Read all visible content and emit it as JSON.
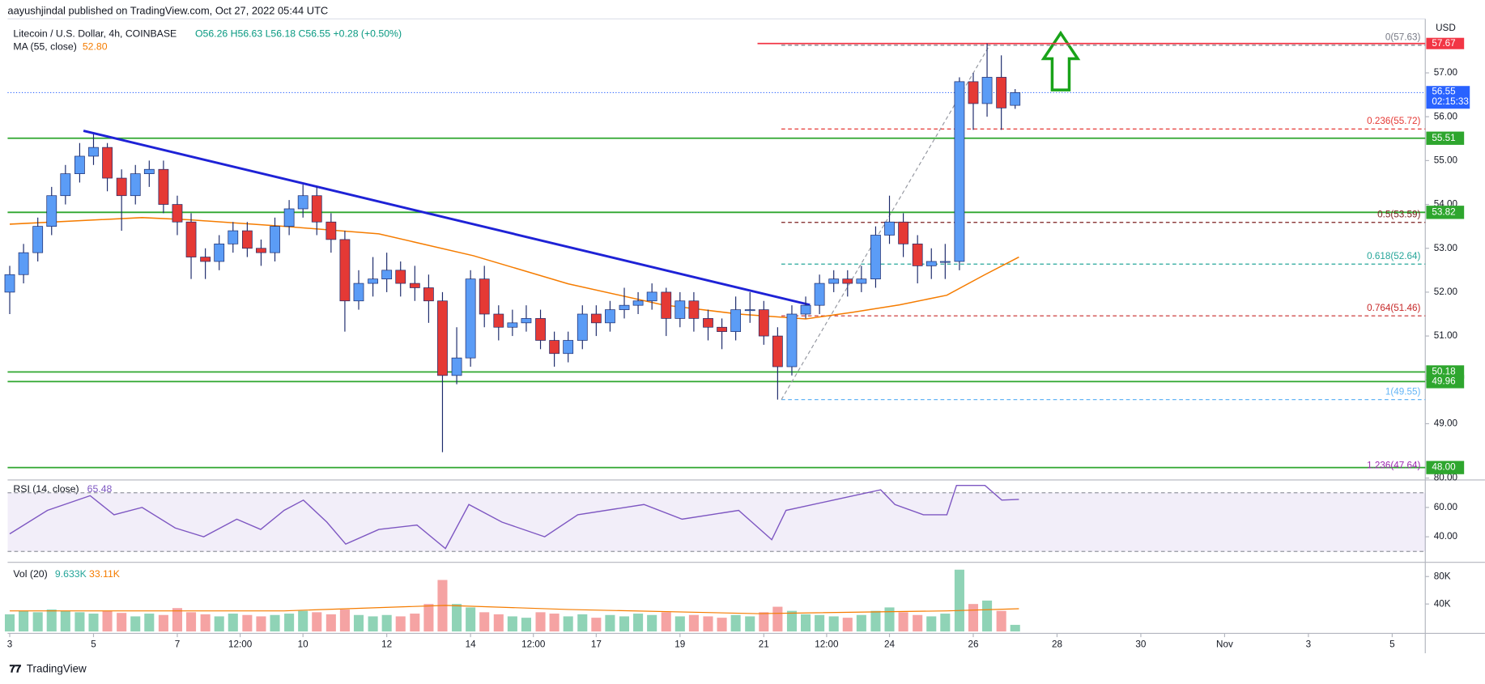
{
  "header": {
    "publisher": "aayushjindal published on TradingView.com, Oct 27, 2022 05:44 UTC",
    "brand": "TradingView"
  },
  "chart_data": {
    "type": "candlestick",
    "symbol": "Litecoin / U.S. Dollar, 4h, COINBASE",
    "ohlc_text": "O56.26 H56.63 L56.18 C56.55 +0.28 (+0.50%)",
    "currency": "USD",
    "countdown": "02:15:33",
    "up_color": "#5b9cf6",
    "down_color": "#e53935",
    "xlim": [
      -0.05,
      33.79
    ],
    "xticks": [
      {
        "value": 0,
        "label": "3"
      },
      {
        "value": 2,
        "label": "5"
      },
      {
        "value": 4,
        "label": "7"
      },
      {
        "value": 5.5,
        "label": "12:00"
      },
      {
        "value": 7,
        "label": "10"
      },
      {
        "value": 9,
        "label": "12"
      },
      {
        "value": 11,
        "label": "14"
      },
      {
        "value": 12.5,
        "label": "12:00"
      },
      {
        "value": 14,
        "label": "17"
      },
      {
        "value": 16,
        "label": "19"
      },
      {
        "value": 18,
        "label": "21"
      },
      {
        "value": 19.5,
        "label": "12:00"
      },
      {
        "value": 21,
        "label": "24"
      },
      {
        "value": 23,
        "label": "26"
      },
      {
        "value": 25,
        "label": "28"
      },
      {
        "value": 27,
        "label": "30"
      },
      {
        "value": 29,
        "label": "Nov"
      },
      {
        "value": 31,
        "label": "3"
      },
      {
        "value": 33,
        "label": "5"
      }
    ],
    "ylim": [
      47.76,
      58.23
    ],
    "yticks": [
      {
        "value": 49,
        "label": "49.00"
      },
      {
        "value": 50,
        "label": "50.00"
      },
      {
        "value": 51,
        "label": "51.00"
      },
      {
        "value": 52,
        "label": "52.00"
      },
      {
        "value": 53,
        "label": "53.00"
      },
      {
        "value": 54,
        "label": "54.00"
      },
      {
        "value": 55,
        "label": "55.00"
      },
      {
        "value": 56,
        "label": "56.00"
      },
      {
        "value": 57,
        "label": "57.00"
      }
    ],
    "x": [
      0,
      0.33,
      0.67,
      1,
      1.33,
      1.67,
      2,
      2.33,
      2.67,
      3,
      3.33,
      3.67,
      4,
      4.33,
      4.67,
      5,
      5.33,
      5.67,
      6,
      6.33,
      6.67,
      7,
      7.33,
      7.67,
      8,
      8.33,
      8.67,
      9,
      9.33,
      9.67,
      10,
      10.33,
      10.67,
      11,
      11.33,
      11.67,
      12,
      12.33,
      12.67,
      13,
      13.33,
      13.67,
      14,
      14.33,
      14.67,
      15,
      15.33,
      15.67,
      16,
      16.33,
      16.67,
      17,
      17.33,
      17.67,
      18,
      18.33,
      18.67,
      19,
      19.33,
      19.67,
      20,
      20.33,
      20.67,
      21,
      21.33,
      21.67,
      22,
      22.33,
      22.67,
      23,
      23.33,
      23.67,
      24
    ],
    "open": [
      52.0,
      52.4,
      52.9,
      53.5,
      54.2,
      54.7,
      55.1,
      55.3,
      54.6,
      54.2,
      54.7,
      54.8,
      54.0,
      53.6,
      52.8,
      52.7,
      53.1,
      53.4,
      53.0,
      52.9,
      53.5,
      53.9,
      54.2,
      53.6,
      53.2,
      51.8,
      52.2,
      52.3,
      52.5,
      52.2,
      52.1,
      51.8,
      50.1,
      50.5,
      52.3,
      51.5,
      51.2,
      51.3,
      51.4,
      50.9,
      50.6,
      50.9,
      51.5,
      51.3,
      51.6,
      51.7,
      51.8,
      52.0,
      51.4,
      51.8,
      51.4,
      51.2,
      51.1,
      51.6,
      51.6,
      51.0,
      50.3,
      51.5,
      51.7,
      52.2,
      52.3,
      52.2,
      52.3,
      53.3,
      53.6,
      53.1,
      52.6,
      52.7,
      52.7,
      56.8,
      56.3,
      56.9,
      56.26
    ],
    "high": [
      52.6,
      53.1,
      53.7,
      54.4,
      54.9,
      55.4,
      55.6,
      55.4,
      54.8,
      54.9,
      55.0,
      55.0,
      54.2,
      53.8,
      53.0,
      53.3,
      53.6,
      53.6,
      53.2,
      53.7,
      54.1,
      54.45,
      54.4,
      53.8,
      53.4,
      52.5,
      52.8,
      52.9,
      52.7,
      52.6,
      52.4,
      52.0,
      51.2,
      52.5,
      52.6,
      51.7,
      51.6,
      51.7,
      51.6,
      51.1,
      51.1,
      51.7,
      51.7,
      51.8,
      52.1,
      52.0,
      52.2,
      52.1,
      52.0,
      52.0,
      51.6,
      51.4,
      51.9,
      52.0,
      51.8,
      51.2,
      51.7,
      51.9,
      52.4,
      52.5,
      52.5,
      52.6,
      53.5,
      54.2,
      53.8,
      53.3,
      53.0,
      53.1,
      56.9,
      57.0,
      57.67,
      57.4,
      56.63
    ],
    "low": [
      51.5,
      52.2,
      52.7,
      53.3,
      54.0,
      54.5,
      54.9,
      54.3,
      53.4,
      54.0,
      54.4,
      53.8,
      53.3,
      52.3,
      52.3,
      52.5,
      52.9,
      52.8,
      52.6,
      52.7,
      53.3,
      53.7,
      53.3,
      52.9,
      51.1,
      51.6,
      51.9,
      52.0,
      51.9,
      51.8,
      51.3,
      48.35,
      49.9,
      50.3,
      51.2,
      50.9,
      51.0,
      51.1,
      50.7,
      50.3,
      50.4,
      50.7,
      51.0,
      51.1,
      51.4,
      51.5,
      51.6,
      51.0,
      51.2,
      51.1,
      50.9,
      50.7,
      50.9,
      51.3,
      50.8,
      49.55,
      50.1,
      51.4,
      51.5,
      52.0,
      51.9,
      52.0,
      52.1,
      53.1,
      52.8,
      52.2,
      52.3,
      52.3,
      52.5,
      55.7,
      56.0,
      55.7,
      56.18
    ],
    "close": [
      52.4,
      52.9,
      53.5,
      54.2,
      54.7,
      55.1,
      55.3,
      54.6,
      54.2,
      54.7,
      54.8,
      54.0,
      53.6,
      52.8,
      52.7,
      53.1,
      53.4,
      53.0,
      52.9,
      53.5,
      53.9,
      54.2,
      53.6,
      53.2,
      51.8,
      52.2,
      52.3,
      52.5,
      52.2,
      52.1,
      51.8,
      50.1,
      50.5,
      52.3,
      51.5,
      51.2,
      51.3,
      51.4,
      50.9,
      50.6,
      50.9,
      51.5,
      51.3,
      51.6,
      51.7,
      51.8,
      52.0,
      51.4,
      51.8,
      51.4,
      51.2,
      51.1,
      51.6,
      51.6,
      51.0,
      50.3,
      51.5,
      51.7,
      52.2,
      52.3,
      52.2,
      52.3,
      53.3,
      53.6,
      53.1,
      52.6,
      52.7,
      52.7,
      56.8,
      56.3,
      56.9,
      56.2,
      56.55
    ],
    "ma": {
      "name": "MA (55, close)",
      "legend_value": "52.80",
      "color": "#f57c00",
      "x": [
        0,
        3.16,
        4.29,
        6.55,
        8.81,
        11.07,
        13.33,
        15.59,
        17.4,
        19.0,
        20.11,
        21.24,
        22.37,
        23.28,
        24.09
      ],
      "values": [
        53.55,
        53.7,
        53.65,
        53.5,
        53.33,
        52.83,
        52.19,
        51.71,
        51.5,
        51.39,
        51.54,
        51.71,
        51.93,
        52.4,
        52.8
      ]
    },
    "trendline": {
      "color": "#1e22d6",
      "x": [
        1.76,
        19.1
      ],
      "values": [
        55.68,
        51.71
      ]
    },
    "hlines": [
      {
        "value": 55.51,
        "label": "55.51"
      },
      {
        "value": 53.82,
        "label": "53.82"
      },
      {
        "value": 50.18,
        "label": "50.18"
      },
      {
        "value": 49.96,
        "label": "49.96"
      },
      {
        "value": 48.0,
        "label": "48.00"
      }
    ],
    "hline_color": "#2ea62e",
    "resistance": {
      "value": 57.67,
      "label": "57.67",
      "color": "#f23645",
      "x_start": 17.85
    },
    "price_line_color": "#2962ff",
    "fib": {
      "x": [
        18.42,
        23.39
      ],
      "levels": [
        {
          "value": 57.63,
          "label": "0(57.63)",
          "color": "#787b86"
        },
        {
          "value": 55.72,
          "label": "0.236(55.72)",
          "color": "#e53935"
        },
        {
          "value": 53.59,
          "label": "0.5(53.59)",
          "color": "#7b1f1f"
        },
        {
          "value": 52.64,
          "label": "0.618(52.64)",
          "color": "#26a69a"
        },
        {
          "value": 51.46,
          "label": "0.764(51.46)",
          "color": "#c62828"
        },
        {
          "value": 49.55,
          "label": "1(49.55)",
          "color": "#64b5f6"
        },
        {
          "value": 47.64,
          "label": "1.236(47.64)",
          "color": "#9c27b0"
        }
      ]
    },
    "rsi": {
      "name": "RSI (14, close)",
      "color": "#7e57c2",
      "ylim": [
        23.87,
        80
      ],
      "band": [
        30,
        70
      ],
      "yticks": [
        {
          "value": 40,
          "label": "40.00"
        },
        {
          "value": 60,
          "label": "60.00"
        },
        {
          "value": 80,
          "label": "80.00"
        }
      ],
      "x": [
        0,
        0.9,
        1.92,
        2.49,
        3.16,
        3.95,
        4.63,
        5.42,
        5.99,
        6.55,
        7.01,
        7.57,
        8.02,
        8.81,
        9.72,
        10.4,
        10.96,
        11.75,
        12.77,
        13.56,
        15.14,
        16.05,
        17.4,
        18.19,
        18.53,
        19.66,
        20.79,
        21.13,
        21.81,
        22.37,
        22.6,
        23.28,
        23.68,
        24.09
      ],
      "values": [
        42,
        58,
        68,
        55,
        60,
        46,
        40,
        52,
        45,
        58,
        65,
        50,
        35,
        45,
        48,
        32,
        62,
        50,
        40,
        55,
        62,
        52,
        58,
        38,
        58,
        65,
        72,
        62,
        55,
        55,
        75,
        75,
        65,
        65.48
      ]
    },
    "volume": {
      "name": "Vol (20)",
      "legend_value": "9.633K",
      "ylim": [
        0,
        96550
      ],
      "yticks": [
        {
          "value": 40000,
          "label": "40K"
        },
        {
          "value": 80000,
          "label": "80K"
        }
      ],
      "up_color": "#8fd3b6",
      "down_color": "#f5a3a3",
      "values": [
        25000,
        30000,
        28000,
        32000,
        30000,
        28000,
        26000,
        30000,
        27000,
        22000,
        26000,
        24000,
        34000,
        28000,
        25000,
        22000,
        26000,
        24000,
        22000,
        24000,
        26000,
        30000,
        28000,
        25000,
        32000,
        24000,
        22000,
        24000,
        22000,
        26000,
        40000,
        75000,
        40000,
        35000,
        28000,
        25000,
        22000,
        20000,
        28000,
        26000,
        22000,
        25000,
        20000,
        24000,
        22000,
        26000,
        24000,
        28000,
        22000,
        24000,
        22000,
        20000,
        24000,
        22000,
        28000,
        36000,
        30000,
        25000,
        24000,
        22000,
        20000,
        24000,
        30000,
        35000,
        28000,
        24000,
        22000,
        26000,
        90000,
        40000,
        45000,
        30000,
        9633
      ],
      "ma": {
        "legend_value": "33.11K",
        "color": "#f57c00",
        "x": [
          0,
          6.55,
          10.4,
          13.33,
          17.85,
          22.37,
          24.09
        ],
        "values": [
          30000,
          30000,
          38000,
          32000,
          26000,
          30000,
          33110
        ]
      }
    }
  }
}
